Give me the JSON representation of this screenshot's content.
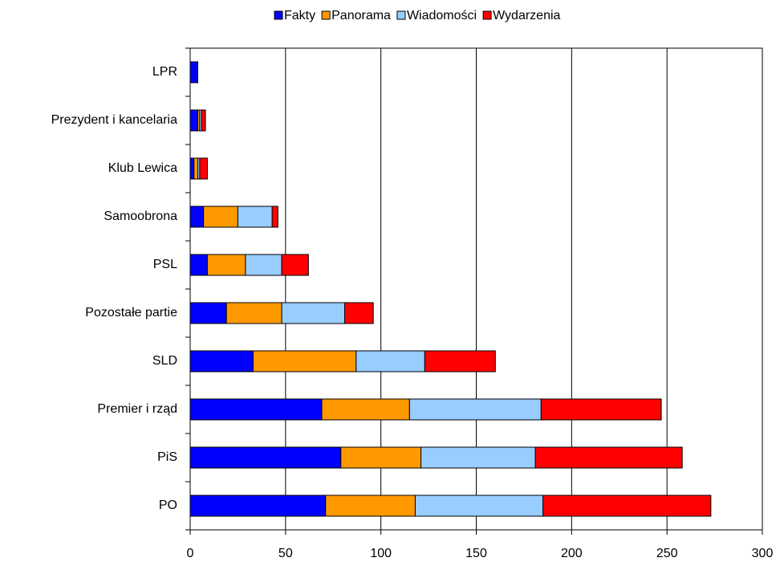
{
  "chart_data": {
    "type": "stacked-barh",
    "categories": [
      "LPR",
      "Prezydent i kancelaria",
      "Klub Lewica",
      "Samoobrona",
      "PSL",
      "Pozostałe partie",
      "SLD",
      "Premier i rząd",
      "PiS",
      "PO"
    ],
    "series": [
      {
        "name": "Fakty",
        "color": "#0000ff",
        "values": [
          4,
          4,
          2,
          7,
          9,
          19,
          33,
          69,
          79,
          71
        ]
      },
      {
        "name": "Panorama",
        "color": "#ff9900",
        "values": [
          0,
          1,
          2,
          18,
          20,
          29,
          54,
          46,
          42,
          47
        ]
      },
      {
        "name": "Wiadomości",
        "color": "#99ccff",
        "values": [
          0,
          1,
          1,
          18,
          19,
          33,
          36,
          69,
          60,
          67
        ]
      },
      {
        "name": "Wydarzenia",
        "color": "#ff0000",
        "values": [
          0,
          2,
          4,
          3,
          14,
          15,
          37,
          63,
          77,
          88
        ]
      }
    ],
    "xlim": [
      0,
      300
    ],
    "xticks": [
      0,
      50,
      100,
      150,
      200,
      250,
      300
    ],
    "grid": true,
    "legend": "top"
  }
}
